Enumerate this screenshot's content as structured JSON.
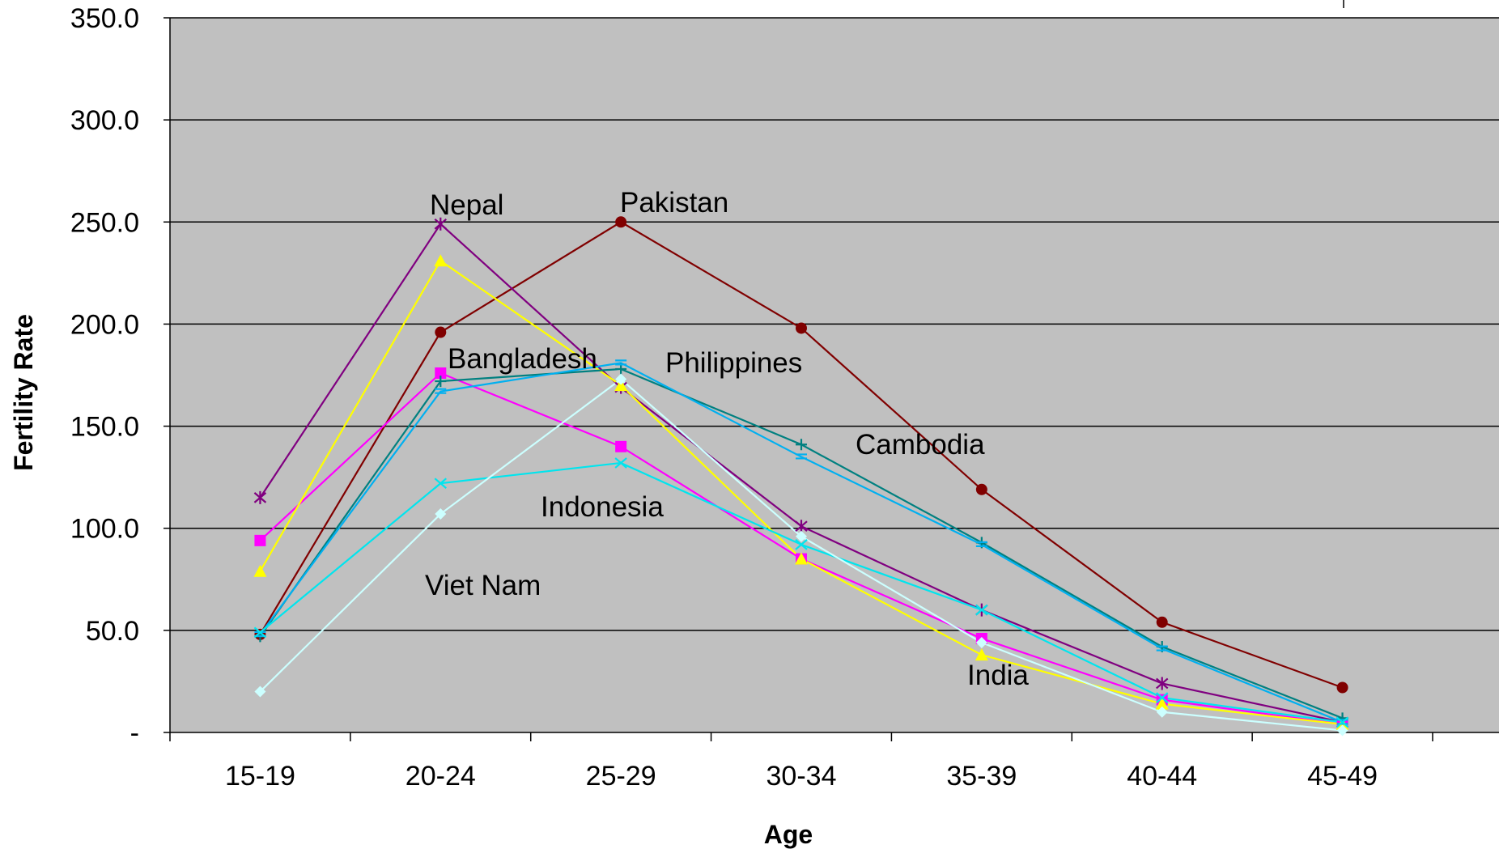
{
  "chart_data": {
    "type": "line",
    "title": "",
    "xlabel": "Age",
    "ylabel": "Fertility Rate",
    "categories": [
      "15-19",
      "20-24",
      "25-29",
      "30-34",
      "35-39",
      "40-44",
      "45-49"
    ],
    "ylim": [
      0,
      350
    ],
    "y_ticks": [
      {
        "value": 0,
        "label": "-"
      },
      {
        "value": 50,
        "label": "50.0"
      },
      {
        "value": 100,
        "label": "100.0"
      },
      {
        "value": 150,
        "label": "150.0"
      },
      {
        "value": 200,
        "label": "200.0"
      },
      {
        "value": 250,
        "label": "250.0"
      },
      {
        "value": 300,
        "label": "300.0"
      },
      {
        "value": 350,
        "label": "350.0"
      }
    ],
    "grid": true,
    "plot_background": "#c0c0c0",
    "series": [
      {
        "name": "Pakistan",
        "color": "#800000",
        "marker": "circle",
        "values": [
          48,
          196,
          250,
          198,
          119,
          54,
          22
        ]
      },
      {
        "name": "Nepal",
        "color": "#800080",
        "marker": "star",
        "values": [
          115,
          249,
          169,
          101,
          60,
          24,
          5
        ]
      },
      {
        "name": "Bangladesh",
        "color": "#ff00ff",
        "marker": "square",
        "values": [
          94,
          176,
          140,
          85,
          46,
          16,
          4
        ]
      },
      {
        "name": "",
        "color": "#ffff00",
        "marker": "triangle",
        "values": [
          79,
          231,
          170,
          85,
          38,
          14,
          4
        ]
      },
      {
        "name": "Cambodia",
        "color": "#008080",
        "marker": "plus",
        "values": [
          47,
          172,
          178,
          141,
          93,
          42,
          7
        ]
      },
      {
        "name": "Philippines",
        "color": "#00b0f0",
        "marker": "dash",
        "values": [
          48,
          167,
          181,
          135,
          92,
          41,
          5
        ]
      },
      {
        "name": "Indonesia",
        "color": "#00e5ee",
        "marker": "x",
        "values": [
          49,
          122,
          132,
          92,
          60,
          17,
          5
        ]
      },
      {
        "name": "Viet Nam",
        "color": "#ccffff",
        "marker": "diamond",
        "values": [
          20,
          107,
          173,
          96,
          44,
          10,
          1
        ]
      }
    ],
    "annotations": [
      {
        "text": "Nepal"
      },
      {
        "text": "Pakistan"
      },
      {
        "text": "Bangladesh"
      },
      {
        "text": "Philippines"
      },
      {
        "text": "Cambodia"
      },
      {
        "text": "Indonesia"
      },
      {
        "text": "Viet Nam"
      },
      {
        "text": "India"
      }
    ]
  }
}
